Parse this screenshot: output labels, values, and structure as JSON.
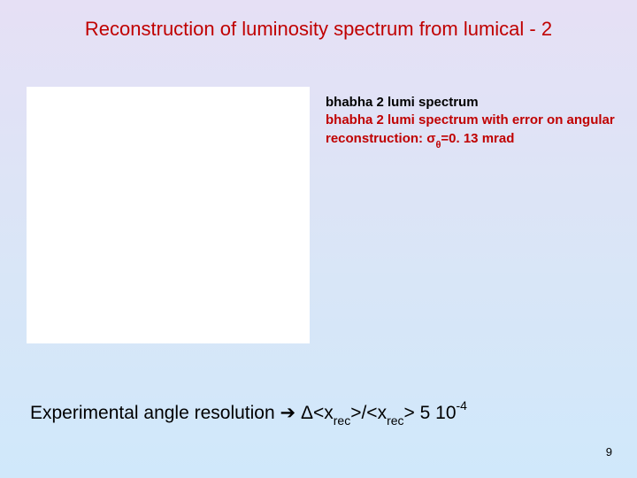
{
  "title": "Reconstruction of luminosity spectrum from lumical - 2",
  "legend": {
    "line1": "bhabha 2 lumi spectrum",
    "line2_a": "bhabha 2 lumi spectrum with error on angular reconstruction: ",
    "sigma": "σ",
    "theta": "θ",
    "line2_b": "=0. 13 mrad"
  },
  "bottom": {
    "prefix": "Experimental angle resolution ",
    "arrow": "➔",
    "delta": " Δ<x",
    "rec1": "rec",
    "mid": ">/<x",
    "rec2": "rec",
    "after": "> 5 10",
    "exp": "-4"
  },
  "page": "9",
  "colors": {
    "title": "#c00000",
    "legend_black": "#000000",
    "legend_red": "#c00000",
    "box_bg": "#ffffff"
  }
}
